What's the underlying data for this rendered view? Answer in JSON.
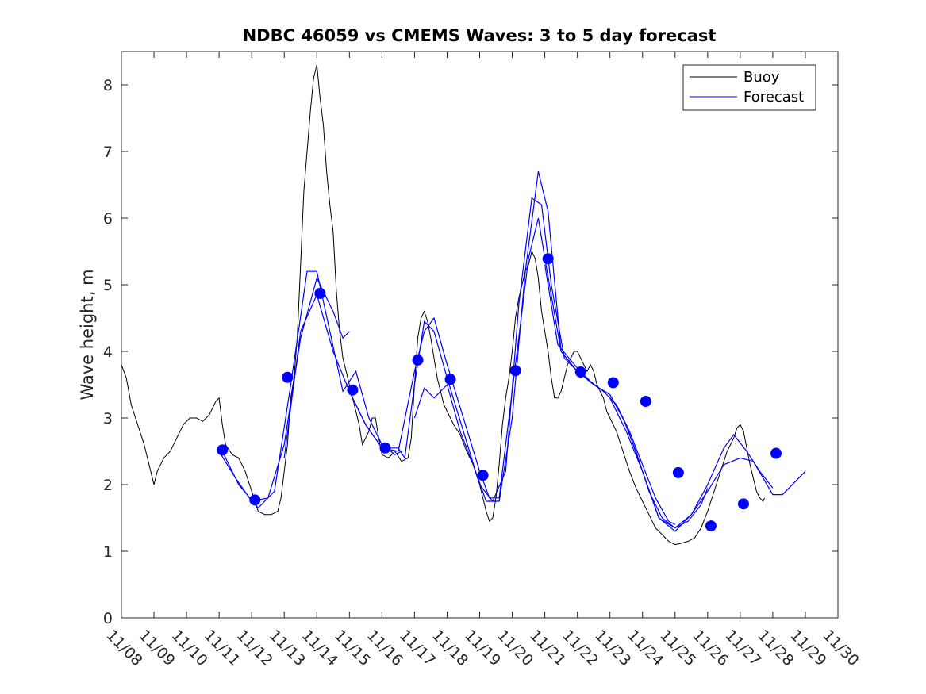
{
  "chart_data": {
    "type": "line",
    "title": "NDBC 46059 vs CMEMS Waves: 3 to 5 day forecast",
    "xlabel": "",
    "ylabel": "Wave height, m",
    "xlim": [
      0,
      22
    ],
    "ylim": [
      0,
      8.5
    ],
    "x_unit": "days since 11/08 00:00",
    "xtick_labels": [
      "11/08",
      "11/09",
      "11/10",
      "11/11",
      "11/12",
      "11/13",
      "11/14",
      "11/15",
      "11/16",
      "11/17",
      "11/18",
      "11/19",
      "11/20",
      "11/21",
      "11/22",
      "11/23",
      "11/24",
      "11/25",
      "11/26",
      "11/27",
      "11/28",
      "11/29",
      "11/30"
    ],
    "yticks": [
      0,
      1,
      2,
      3,
      4,
      5,
      6,
      7,
      8
    ],
    "legend": {
      "position": "top-right",
      "entries": [
        "Buoy",
        "Forecast"
      ]
    },
    "colors": {
      "buoy": "#000000",
      "forecast": "#0000ff",
      "axes": "#262626"
    },
    "series": [
      {
        "name": "Buoy",
        "color": "#000000",
        "points": [
          [
            0.0,
            3.8
          ],
          [
            0.15,
            3.6
          ],
          [
            0.3,
            3.2
          ],
          [
            0.5,
            2.9
          ],
          [
            0.7,
            2.6
          ],
          [
            0.9,
            2.2
          ],
          [
            1.0,
            2.0
          ],
          [
            1.1,
            2.2
          ],
          [
            1.3,
            2.4
          ],
          [
            1.5,
            2.5
          ],
          [
            1.7,
            2.7
          ],
          [
            1.9,
            2.9
          ],
          [
            2.1,
            3.0
          ],
          [
            2.3,
            3.0
          ],
          [
            2.5,
            2.95
          ],
          [
            2.7,
            3.05
          ],
          [
            2.9,
            3.25
          ],
          [
            3.0,
            3.3
          ],
          [
            3.1,
            2.9
          ],
          [
            3.2,
            2.6
          ],
          [
            3.4,
            2.45
          ],
          [
            3.6,
            2.4
          ],
          [
            3.8,
            2.2
          ],
          [
            4.0,
            1.9
          ],
          [
            4.2,
            1.6
          ],
          [
            4.4,
            1.55
          ],
          [
            4.6,
            1.55
          ],
          [
            4.8,
            1.6
          ],
          [
            4.9,
            1.8
          ],
          [
            5.0,
            2.2
          ],
          [
            5.1,
            2.6
          ],
          [
            5.2,
            3.3
          ],
          [
            5.3,
            3.6
          ],
          [
            5.4,
            4.2
          ],
          [
            5.5,
            5.3
          ],
          [
            5.6,
            6.4
          ],
          [
            5.7,
            7.0
          ],
          [
            5.8,
            7.6
          ],
          [
            5.9,
            8.1
          ],
          [
            6.0,
            8.3
          ],
          [
            6.1,
            7.8
          ],
          [
            6.2,
            7.4
          ],
          [
            6.3,
            6.7
          ],
          [
            6.4,
            6.2
          ],
          [
            6.5,
            5.8
          ],
          [
            6.6,
            4.9
          ],
          [
            6.7,
            4.3
          ],
          [
            6.8,
            3.9
          ],
          [
            6.9,
            3.7
          ],
          [
            7.0,
            3.5
          ],
          [
            7.1,
            3.3
          ],
          [
            7.2,
            3.1
          ],
          [
            7.3,
            2.9
          ],
          [
            7.4,
            2.6
          ],
          [
            7.5,
            2.7
          ],
          [
            7.6,
            2.8
          ],
          [
            7.7,
            3.0
          ],
          [
            7.8,
            3.0
          ],
          [
            7.9,
            2.7
          ],
          [
            8.0,
            2.45
          ],
          [
            8.2,
            2.4
          ],
          [
            8.4,
            2.5
          ],
          [
            8.6,
            2.35
          ],
          [
            8.8,
            2.4
          ],
          [
            8.9,
            2.7
          ],
          [
            9.0,
            3.5
          ],
          [
            9.1,
            4.2
          ],
          [
            9.2,
            4.5
          ],
          [
            9.3,
            4.6
          ],
          [
            9.4,
            4.45
          ],
          [
            9.5,
            4.2
          ],
          [
            9.6,
            3.9
          ],
          [
            9.7,
            3.6
          ],
          [
            9.8,
            3.4
          ],
          [
            9.9,
            3.2
          ],
          [
            10.0,
            3.1
          ],
          [
            10.1,
            3.0
          ],
          [
            10.2,
            2.9
          ],
          [
            10.4,
            2.75
          ],
          [
            10.6,
            2.5
          ],
          [
            10.8,
            2.3
          ],
          [
            11.0,
            2.0
          ],
          [
            11.1,
            1.8
          ],
          [
            11.2,
            1.6
          ],
          [
            11.3,
            1.45
          ],
          [
            11.4,
            1.5
          ],
          [
            11.5,
            1.8
          ],
          [
            11.6,
            2.3
          ],
          [
            11.7,
            2.9
          ],
          [
            11.8,
            3.3
          ],
          [
            11.9,
            3.6
          ],
          [
            12.0,
            4.0
          ],
          [
            12.1,
            4.5
          ],
          [
            12.2,
            4.8
          ],
          [
            12.3,
            5.0
          ],
          [
            12.4,
            5.2
          ],
          [
            12.5,
            5.3
          ],
          [
            12.6,
            5.5
          ],
          [
            12.7,
            5.4
          ],
          [
            12.8,
            5.1
          ],
          [
            12.9,
            4.6
          ],
          [
            13.0,
            4.3
          ],
          [
            13.1,
            4.0
          ],
          [
            13.2,
            3.6
          ],
          [
            13.3,
            3.3
          ],
          [
            13.4,
            3.3
          ],
          [
            13.5,
            3.4
          ],
          [
            13.6,
            3.6
          ],
          [
            13.7,
            3.8
          ],
          [
            13.8,
            3.9
          ],
          [
            13.9,
            4.0
          ],
          [
            14.0,
            4.0
          ],
          [
            14.1,
            3.9
          ],
          [
            14.2,
            3.8
          ],
          [
            14.3,
            3.7
          ],
          [
            14.4,
            3.8
          ],
          [
            14.5,
            3.7
          ],
          [
            14.6,
            3.5
          ],
          [
            14.7,
            3.4
          ],
          [
            14.8,
            3.3
          ],
          [
            14.9,
            3.1
          ],
          [
            15.0,
            3.0
          ],
          [
            15.2,
            2.8
          ],
          [
            15.4,
            2.5
          ],
          [
            15.6,
            2.2
          ],
          [
            15.8,
            1.95
          ],
          [
            16.0,
            1.75
          ],
          [
            16.2,
            1.55
          ],
          [
            16.4,
            1.35
          ],
          [
            16.6,
            1.25
          ],
          [
            16.8,
            1.15
          ],
          [
            17.0,
            1.1
          ],
          [
            17.2,
            1.12
          ],
          [
            17.4,
            1.15
          ],
          [
            17.6,
            1.2
          ],
          [
            17.8,
            1.35
          ],
          [
            18.0,
            1.6
          ],
          [
            18.2,
            1.9
          ],
          [
            18.4,
            2.2
          ],
          [
            18.6,
            2.5
          ],
          [
            18.8,
            2.7
          ],
          [
            18.9,
            2.85
          ],
          [
            19.0,
            2.9
          ],
          [
            19.1,
            2.8
          ],
          [
            19.2,
            2.55
          ],
          [
            19.3,
            2.3
          ],
          [
            19.4,
            2.1
          ],
          [
            19.5,
            1.9
          ],
          [
            19.6,
            1.8
          ],
          [
            19.7,
            1.75
          ],
          [
            19.75,
            1.8
          ]
        ]
      },
      {
        "name": "Forecast",
        "color": "#0000ff",
        "segments": [
          [
            [
              3.0,
              2.5
            ],
            [
              3.5,
              2.1
            ],
            [
              4.0,
              1.75
            ],
            [
              4.5,
              1.8
            ],
            [
              5.0,
              2.6
            ],
            [
              5.5,
              4.2
            ],
            [
              6.0,
              5.1
            ],
            [
              6.5,
              4.6
            ],
            [
              6.8,
              4.2
            ],
            [
              7.0,
              4.3
            ]
          ],
          [
            [
              3.1,
              2.5
            ],
            [
              3.6,
              2.0
            ],
            [
              4.2,
              1.65
            ],
            [
              4.7,
              1.9
            ],
            [
              5.2,
              3.5
            ],
            [
              5.7,
              5.2
            ],
            [
              6.0,
              5.2
            ],
            [
              6.4,
              4.3
            ],
            [
              6.8,
              3.4
            ],
            [
              7.2,
              3.7
            ],
            [
              7.6,
              3.0
            ],
            [
              8.0,
              2.6
            ],
            [
              8.4,
              2.45
            ],
            [
              8.6,
              2.5
            ]
          ],
          [
            [
              5.0,
              2.4
            ],
            [
              5.5,
              4.3
            ],
            [
              6.0,
              4.85
            ],
            [
              6.5,
              4.0
            ],
            [
              7.0,
              3.4
            ],
            [
              7.5,
              2.9
            ],
            [
              8.0,
              2.55
            ],
            [
              8.5,
              2.5
            ],
            [
              9.0,
              3.7
            ],
            [
              9.3,
              4.3
            ],
            [
              9.6,
              4.5
            ],
            [
              10.0,
              3.8
            ],
            [
              10.5,
              3.0
            ],
            [
              11.0,
              2.2
            ],
            [
              11.3,
              1.8
            ],
            [
              11.6,
              1.8
            ],
            [
              12.0,
              3.4
            ],
            [
              12.5,
              5.4
            ],
            [
              12.8,
              6.0
            ],
            [
              13.0,
              5.4
            ],
            [
              13.5,
              4.0
            ],
            [
              14.0,
              3.7
            ]
          ],
          [
            [
              7.0,
              3.4
            ],
            [
              7.5,
              2.9
            ],
            [
              8.0,
              2.55
            ],
            [
              8.5,
              2.55
            ],
            [
              8.7,
              2.4
            ],
            [
              9.0,
              3.5
            ],
            [
              9.3,
              4.45
            ],
            [
              9.6,
              4.3
            ],
            [
              10.0,
              3.6
            ],
            [
              10.5,
              2.8
            ],
            [
              11.0,
              2.0
            ],
            [
              11.4,
              1.75
            ],
            [
              11.8,
              2.2
            ],
            [
              12.2,
              4.7
            ],
            [
              12.6,
              6.3
            ],
            [
              12.9,
              6.2
            ],
            [
              13.2,
              5.0
            ],
            [
              13.6,
              3.9
            ],
            [
              14.0,
              3.7
            ],
            [
              14.4,
              3.55
            ],
            [
              14.8,
              3.4
            ],
            [
              15.2,
              3.2
            ],
            [
              15.6,
              2.8
            ],
            [
              16.0,
              2.3
            ],
            [
              16.4,
              1.8
            ],
            [
              16.8,
              1.45
            ],
            [
              17.0,
              1.4
            ]
          ],
          [
            [
              9.0,
              3.0
            ],
            [
              9.3,
              3.45
            ],
            [
              9.6,
              3.3
            ],
            [
              10.0,
              3.5
            ],
            [
              10.4,
              2.8
            ],
            [
              10.8,
              2.3
            ],
            [
              11.2,
              1.75
            ],
            [
              11.6,
              1.75
            ],
            [
              12.0,
              3.0
            ],
            [
              12.4,
              5.2
            ],
            [
              12.8,
              6.7
            ],
            [
              13.1,
              6.1
            ],
            [
              13.5,
              4.0
            ],
            [
              14.0,
              3.7
            ],
            [
              14.5,
              3.5
            ],
            [
              15.0,
              3.35
            ],
            [
              15.4,
              3.0
            ],
            [
              15.8,
              2.5
            ],
            [
              16.2,
              1.9
            ],
            [
              16.6,
              1.5
            ],
            [
              17.0,
              1.35
            ],
            [
              17.4,
              1.45
            ],
            [
              17.8,
              1.7
            ],
            [
              18.0,
              1.95
            ]
          ],
          [
            [
              13.0,
              5.3
            ],
            [
              13.4,
              4.1
            ],
            [
              14.0,
              3.75
            ],
            [
              14.5,
              3.5
            ],
            [
              15.0,
              3.35
            ],
            [
              15.5,
              2.9
            ],
            [
              16.0,
              2.2
            ],
            [
              16.5,
              1.5
            ],
            [
              17.0,
              1.3
            ],
            [
              17.5,
              1.55
            ],
            [
              18.0,
              2.0
            ],
            [
              18.5,
              2.55
            ],
            [
              18.8,
              2.75
            ],
            [
              19.2,
              2.5
            ],
            [
              19.6,
              2.2
            ],
            [
              20.0,
              1.95
            ]
          ],
          [
            [
              15.0,
              3.3
            ],
            [
              15.5,
              2.8
            ],
            [
              16.0,
              2.2
            ],
            [
              16.5,
              1.5
            ],
            [
              17.0,
              1.35
            ],
            [
              17.5,
              1.55
            ],
            [
              18.0,
              1.9
            ],
            [
              18.5,
              2.3
            ],
            [
              19.0,
              2.4
            ],
            [
              19.4,
              2.35
            ],
            [
              19.7,
              2.1
            ],
            [
              20.0,
              1.85
            ],
            [
              20.3,
              1.85
            ],
            [
              20.7,
              2.05
            ],
            [
              21.0,
              2.2
            ]
          ]
        ]
      },
      {
        "name": "Forecast markers",
        "color": "#0000ff",
        "points": [
          [
            3.1,
            2.52
          ],
          [
            4.1,
            1.77
          ],
          [
            5.1,
            3.61
          ],
          [
            6.1,
            4.87
          ],
          [
            7.1,
            3.42
          ],
          [
            8.1,
            2.55
          ],
          [
            9.1,
            3.87
          ],
          [
            10.1,
            3.58
          ],
          [
            11.1,
            2.14
          ],
          [
            12.1,
            3.71
          ],
          [
            13.1,
            5.39
          ],
          [
            14.1,
            3.69
          ],
          [
            15.1,
            3.53
          ],
          [
            16.1,
            3.25
          ],
          [
            17.1,
            2.18
          ],
          [
            18.1,
            1.38
          ],
          [
            19.1,
            1.71
          ],
          [
            20.1,
            2.47
          ]
        ]
      }
    ]
  }
}
